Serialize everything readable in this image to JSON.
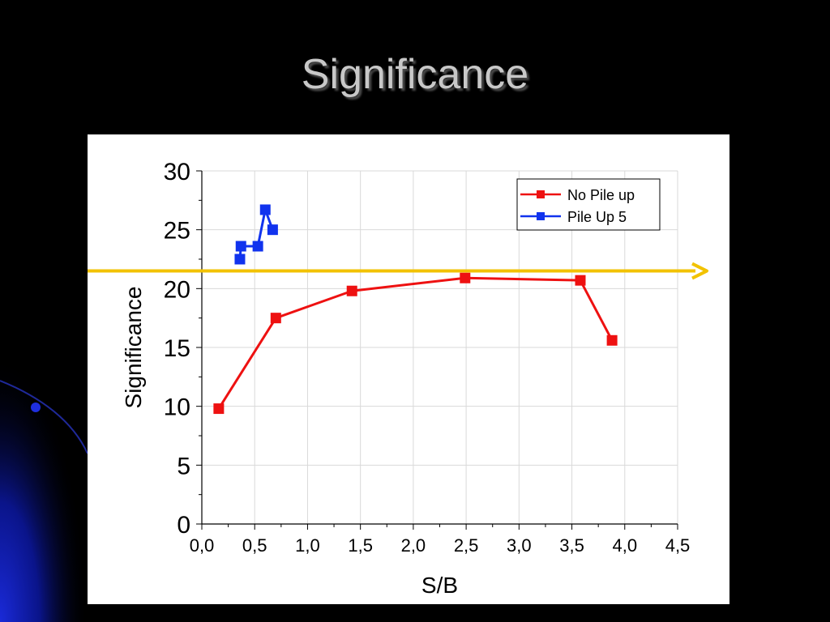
{
  "slide": {
    "title": "Significance"
  },
  "chart_data": {
    "type": "line",
    "xlabel": "S/B",
    "ylabel": "Significance",
    "xlim": [
      0.0,
      4.5
    ],
    "ylim": [
      0,
      30
    ],
    "x_ticks": [
      "0,0",
      "0,5",
      "1,0",
      "1,5",
      "2,0",
      "2,5",
      "3,0",
      "3,5",
      "4,0",
      "4,5"
    ],
    "y_ticks": [
      "0",
      "5",
      "10",
      "15",
      "20",
      "25",
      "30"
    ],
    "grid": true,
    "legend_position": "top-right",
    "series": [
      {
        "name": "No Pile up",
        "color": "#ee1111",
        "points": [
          [
            0.16,
            9.8
          ],
          [
            0.7,
            17.5
          ],
          [
            1.42,
            19.8
          ],
          [
            2.49,
            20.9
          ],
          [
            3.58,
            20.7
          ],
          [
            3.88,
            15.6
          ]
        ]
      },
      {
        "name": "Pile Up 5",
        "color": "#1133ee",
        "points": [
          [
            0.36,
            22.5
          ],
          [
            0.37,
            23.6
          ],
          [
            0.53,
            23.6
          ],
          [
            0.6,
            26.7
          ],
          [
            0.67,
            25.0
          ]
        ]
      }
    ],
    "reference_line": {
      "y": 21.5,
      "color": "#f2c200"
    }
  }
}
